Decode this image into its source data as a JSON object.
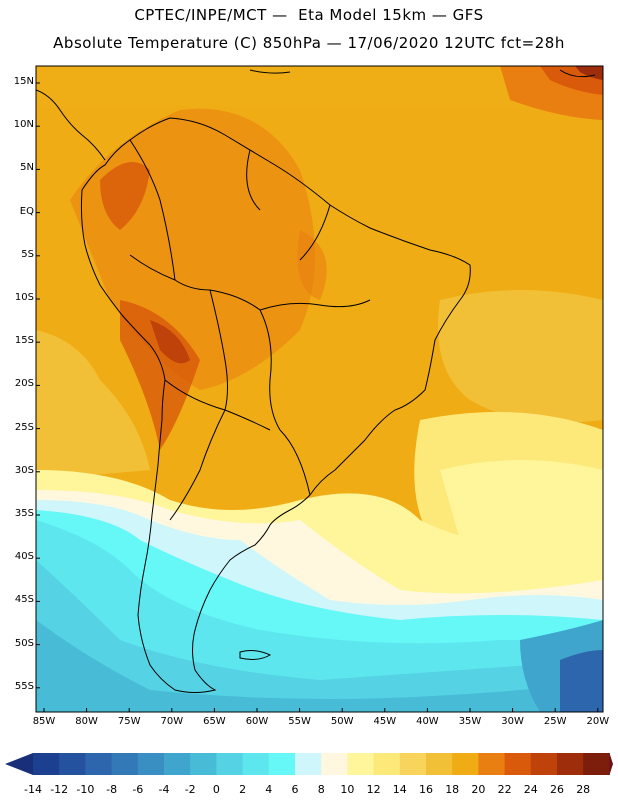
{
  "title_line1": "CPTEC/INPE/MCT —  Eta Model 15km — GFS",
  "title_line2": "Absolute Temperature (C) 850hPa — 17/06/2020 12UTC fct=28h",
  "lat_labels": [
    "15N",
    "10N",
    "5N",
    "EQ",
    "5S",
    "10S",
    "15S",
    "20S",
    "25S",
    "30S",
    "35S",
    "40S",
    "45S",
    "50S",
    "55S"
  ],
  "lon_labels": [
    "85W",
    "80W",
    "75W",
    "70W",
    "65W",
    "60W",
    "55W",
    "50W",
    "45W",
    "40W",
    "35W",
    "30W",
    "25W",
    "20W"
  ],
  "colorbar": {
    "labels": [
      "-14",
      "-12",
      "-10",
      "-8",
      "-6",
      "-4",
      "-2",
      "0",
      "2",
      "4",
      "6",
      "8",
      "10",
      "12",
      "14",
      "16",
      "18",
      "20",
      "22",
      "24",
      "26",
      "28"
    ],
    "colors": [
      "#1c3f8f",
      "#25529e",
      "#2e66ae",
      "#3379b8",
      "#3a8fc2",
      "#3fa5cc",
      "#48bcd6",
      "#55d2e3",
      "#5ee6ef",
      "#66f7f7",
      "#cff6fb",
      "#fff8df",
      "#fff59a",
      "#fde97a",
      "#f8d45d",
      "#f2c036",
      "#efac14",
      "#e97f10",
      "#d85a0a",
      "#bf420a",
      "#9e2d0c",
      "#7d1e0c"
    ],
    "low_arrow_color": "#1a2f7a",
    "high_arrow_color": "#6b0f1e"
  },
  "map": {
    "background": "#f1b212",
    "coastline_color": "#000000"
  }
}
